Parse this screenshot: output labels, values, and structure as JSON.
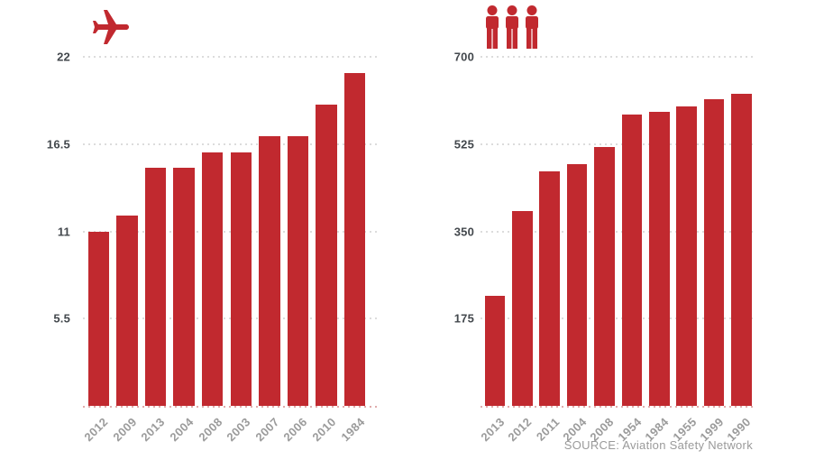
{
  "colors": {
    "bar": "#c1292f",
    "axis_label": "#43484d",
    "tick_label": "#9b9b9b",
    "grid": "#dcdcdc",
    "baseline_grid": "#dfabab",
    "source": "#9a9a9a",
    "background": "#ffffff"
  },
  "source": {
    "label": "SOURCE: Aviation Safety Network"
  },
  "chart_data": [
    {
      "type": "bar",
      "title": "",
      "icon": "airplane-icon",
      "categories": [
        "2012",
        "2009",
        "2013",
        "2004",
        "2008",
        "2003",
        "2007",
        "2006",
        "2010",
        "1984"
      ],
      "values": [
        11,
        12,
        15,
        15,
        16,
        16,
        17,
        17,
        19,
        21
      ],
      "xlabel": "",
      "ylabel": "",
      "ylim": [
        0,
        22
      ],
      "yticks": [
        {
          "value": 22,
          "label": "22"
        },
        {
          "value": 16.5,
          "label": "16.5"
        },
        {
          "value": 11,
          "label": "11"
        },
        {
          "value": 5.5,
          "label": "5.5"
        }
      ],
      "grid": "dotted-horizontal",
      "legend": "none"
    },
    {
      "type": "bar",
      "title": "",
      "icon": "people-icon",
      "categories": [
        "2013",
        "2012",
        "2011",
        "2004",
        "2008",
        "1954",
        "1984",
        "1955",
        "1999",
        "1990"
      ],
      "values": [
        220,
        390,
        470,
        485,
        520,
        585,
        590,
        600,
        615,
        625
      ],
      "xlabel": "",
      "ylabel": "",
      "ylim": [
        0,
        700
      ],
      "yticks": [
        {
          "value": 700,
          "label": "700"
        },
        {
          "value": 525,
          "label": "525"
        },
        {
          "value": 350,
          "label": "350"
        },
        {
          "value": 175,
          "label": "175"
        }
      ],
      "grid": "dotted-horizontal",
      "legend": "none"
    }
  ]
}
